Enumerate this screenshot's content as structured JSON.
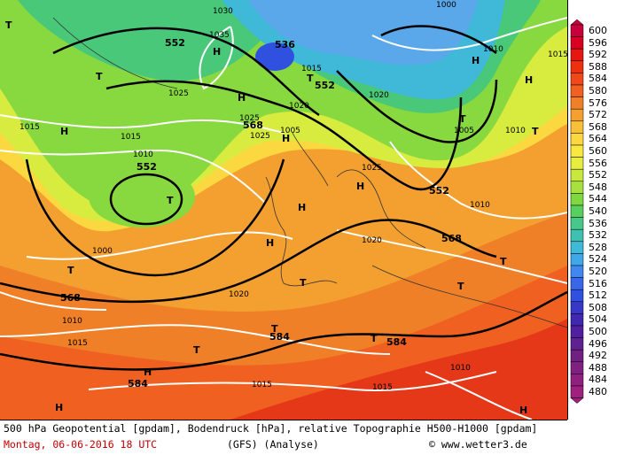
{
  "legend": {
    "values": [
      "600",
      "596",
      "592",
      "588",
      "584",
      "580",
      "576",
      "572",
      "568",
      "564",
      "560",
      "556",
      "552",
      "548",
      "544",
      "540",
      "536",
      "532",
      "528",
      "524",
      "520",
      "516",
      "512",
      "508",
      "504",
      "500",
      "496",
      "492",
      "488",
      "484",
      "480"
    ],
    "colors": [
      "#c8003c",
      "#d80020",
      "#e41810",
      "#ec3010",
      "#f04818",
      "#f06020",
      "#f08028",
      "#f4a030",
      "#f8c038",
      "#fcd840",
      "#f8e840",
      "#e8ec40",
      "#c8e840",
      "#a8e040",
      "#80d840",
      "#58d060",
      "#48c888",
      "#40c0b0",
      "#40b8d8",
      "#40a8e8",
      "#4088f0",
      "#3868e8",
      "#3050e0",
      "#3838c8",
      "#4028b0",
      "#5020a0",
      "#602090",
      "#702080",
      "#802080",
      "#902080",
      "#a02080"
    ]
  },
  "map_labels": {
    "geopotential": [
      "552",
      "536",
      "552",
      "568",
      "552",
      "552",
      "568",
      "568",
      "584",
      "584",
      "584"
    ],
    "pressure": [
      "1030",
      "1035",
      "1025",
      "1025",
      "1020",
      "1015",
      "1025",
      "1010",
      "1020",
      "1015",
      "1015",
      "1000",
      "1010",
      "1015",
      "1020",
      "1020",
      "1010",
      "1015",
      "1015",
      "1010",
      "1000",
      "1005",
      "1010",
      "1025",
      "1005",
      "1010",
      "1015"
    ],
    "highs": [
      "H",
      "H",
      "H",
      "H",
      "H",
      "H",
      "H",
      "H",
      "H",
      "H",
      "H",
      "H"
    ],
    "lows": [
      "T",
      "T",
      "T",
      "T",
      "T",
      "T",
      "T",
      "T",
      "T",
      "T",
      "T",
      "T",
      "T"
    ]
  },
  "footer": {
    "line1": "500 hPa Geopotential [gpdam], Bodendruck [hPa], relative Topographie H500-H1000 [gpdam]",
    "date": "Montag, 06-06-2016  18 UTC",
    "model": "(GFS)  (Analyse)",
    "copyright": "© www.wetter3.de"
  }
}
